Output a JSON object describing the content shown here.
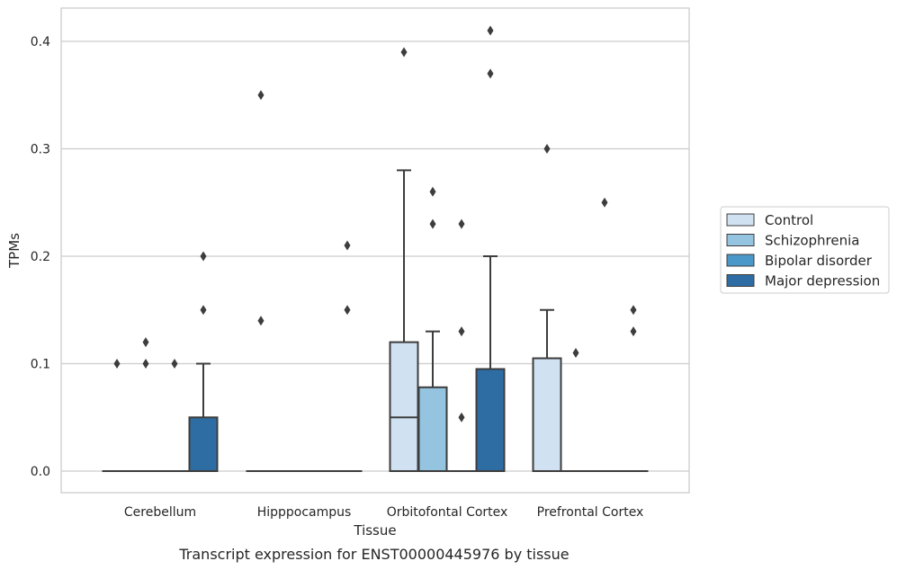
{
  "chart_data": {
    "type": "box",
    "title": "",
    "caption": "Transcript expression for ENST00000445976 by tissue",
    "xlabel": "Tissue",
    "ylabel": "TPMs",
    "ylim": [
      -0.02,
      0.43
    ],
    "yticks": [
      "0.0",
      "0.1",
      "0.2",
      "0.3",
      "0.4"
    ],
    "grid": "horizontal",
    "legend_position": "right",
    "categories": [
      "Cerebellum",
      "Hipppocampus",
      "Orbitofontal Cortex",
      "Prefrontal Cortex"
    ],
    "series": [
      {
        "name": "Control",
        "color": "#d0e1f2",
        "boxes": [
          {
            "q1": 0,
            "median": 0,
            "q3": 0,
            "whisker_low": 0,
            "whisker_high": 0,
            "outliers": [
              0.1
            ]
          },
          {
            "q1": 0,
            "median": 0,
            "q3": 0,
            "whisker_low": 0,
            "whisker_high": 0,
            "outliers": [
              0.14,
              0.35
            ]
          },
          {
            "q1": 0,
            "median": 0.05,
            "q3": 0.12,
            "whisker_low": 0,
            "whisker_high": 0.28,
            "outliers": [
              0.39
            ]
          },
          {
            "q1": 0,
            "median": 0,
            "q3": 0.105,
            "whisker_low": 0,
            "whisker_high": 0.15,
            "outliers": [
              0.3
            ]
          }
        ]
      },
      {
        "name": "Schizophrenia",
        "color": "#94c4df",
        "boxes": [
          {
            "q1": 0,
            "median": 0,
            "q3": 0,
            "whisker_low": 0,
            "whisker_high": 0,
            "outliers": [
              0.1,
              0.12
            ]
          },
          {
            "q1": 0,
            "median": 0,
            "q3": 0,
            "whisker_low": 0,
            "whisker_high": 0,
            "outliers": []
          },
          {
            "q1": 0,
            "median": 0,
            "q3": 0.078,
            "whisker_low": 0,
            "whisker_high": 0.13,
            "outliers": [
              0.23,
              0.26
            ]
          },
          {
            "q1": 0,
            "median": 0,
            "q3": 0,
            "whisker_low": 0,
            "whisker_high": 0,
            "outliers": [
              0.11
            ]
          }
        ]
      },
      {
        "name": "Bipolar disorder",
        "color": "#4a98c9",
        "boxes": [
          {
            "q1": 0,
            "median": 0,
            "q3": 0,
            "whisker_low": 0,
            "whisker_high": 0,
            "outliers": [
              0.1
            ]
          },
          {
            "q1": 0,
            "median": 0,
            "q3": 0,
            "whisker_low": 0,
            "whisker_high": 0,
            "outliers": []
          },
          {
            "q1": 0,
            "median": 0,
            "q3": 0,
            "whisker_low": 0,
            "whisker_high": 0,
            "outliers": [
              0.05,
              0.13,
              0.23
            ]
          },
          {
            "q1": 0,
            "median": 0,
            "q3": 0,
            "whisker_low": 0,
            "whisker_high": 0,
            "outliers": [
              0.25
            ]
          }
        ]
      },
      {
        "name": "Major depression",
        "color": "#2e6da4",
        "boxes": [
          {
            "q1": 0,
            "median": 0,
            "q3": 0.05,
            "whisker_low": 0,
            "whisker_high": 0.1,
            "outliers": [
              0.15,
              0.2
            ]
          },
          {
            "q1": 0,
            "median": 0,
            "q3": 0,
            "whisker_low": 0,
            "whisker_high": 0,
            "outliers": [
              0.15,
              0.21
            ]
          },
          {
            "q1": 0,
            "median": 0,
            "q3": 0.095,
            "whisker_low": 0,
            "whisker_high": 0.2,
            "outliers": [
              0.37,
              0.41
            ]
          },
          {
            "q1": 0,
            "median": 0,
            "q3": 0,
            "whisker_low": 0,
            "whisker_high": 0,
            "outliers": [
              0.13,
              0.15
            ]
          }
        ]
      }
    ]
  }
}
